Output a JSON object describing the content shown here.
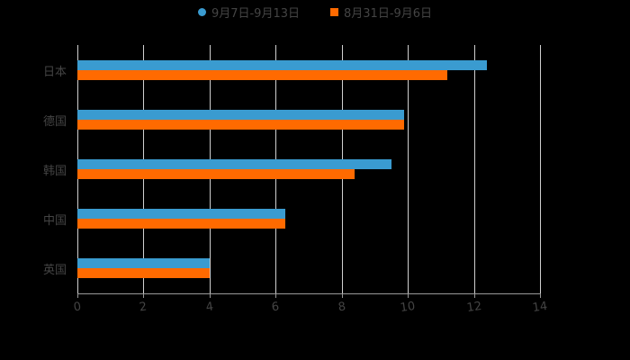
{
  "chart_data": {
    "type": "bar",
    "orientation": "horizontal",
    "title": "",
    "xlabel": "",
    "ylabel": "",
    "categories": [
      "日本",
      "德国",
      "韩国",
      "中国",
      "英国"
    ],
    "series": [
      {
        "name": "9月7日-9月13日",
        "color": "#3a9bd0",
        "values": [
          12.4,
          9.9,
          9.5,
          6.3,
          4.0
        ]
      },
      {
        "name": "8月31日-9月6日",
        "color": "#ff6a00",
        "values": [
          11.2,
          9.9,
          8.4,
          6.3,
          4.0
        ]
      }
    ],
    "xlim": [
      0,
      14
    ],
    "x_ticks": [
      "0",
      "2",
      "4",
      "6",
      "8",
      "10",
      "12",
      "14"
    ],
    "grid": true,
    "legend_position": "top"
  },
  "legend": {
    "items": [
      {
        "label": "9月7日-9月13日",
        "color": "#3a9bd0",
        "shape": "circle"
      },
      {
        "label": "8月31日-9月6日",
        "color": "#ff6a00",
        "shape": "square"
      }
    ]
  }
}
